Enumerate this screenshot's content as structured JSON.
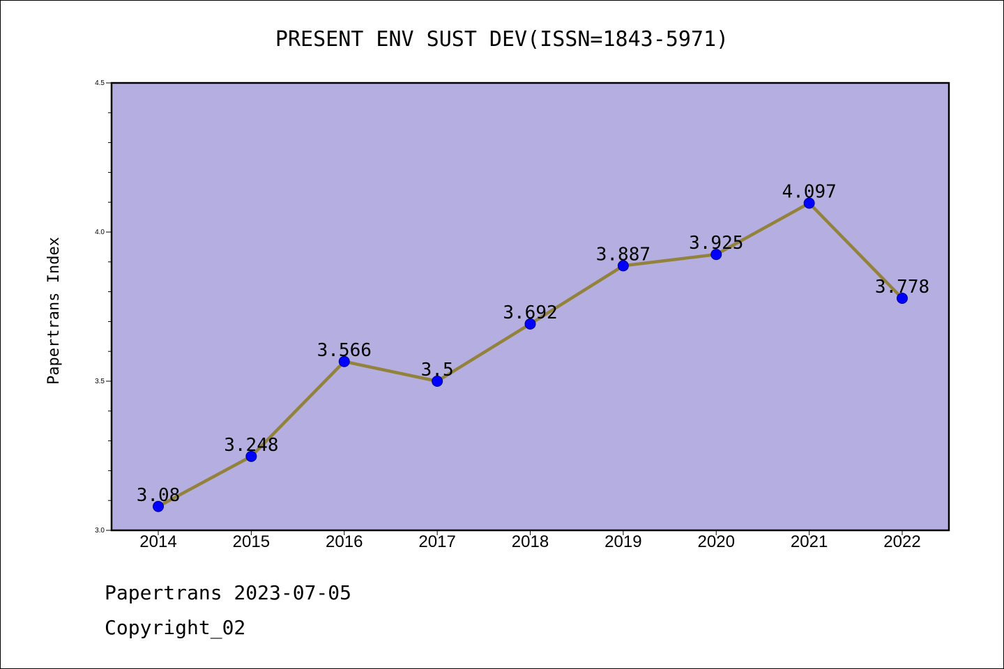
{
  "footer": {
    "date_line": "Papertrans 2023-07-05",
    "copyright": "Copyright_02"
  },
  "chart_data": {
    "type": "line",
    "title": "PRESENT ENV SUST DEV(ISSN=1843-5971)",
    "xlabel": "",
    "ylabel": "Papertrans Index",
    "categories": [
      "2014",
      "2015",
      "2016",
      "2017",
      "2018",
      "2019",
      "2020",
      "2021",
      "2022"
    ],
    "series": [
      {
        "values": [
          3.08,
          3.248,
          3.566,
          3.5,
          3.692,
          3.887,
          3.925,
          4.097,
          3.778
        ],
        "labels": [
          "3.08",
          "3.248",
          "3.566",
          "3.5",
          "3.692",
          "3.887",
          "3.925",
          "4.097",
          "3.778"
        ]
      }
    ],
    "ylim": [
      3.0,
      4.5
    ],
    "yticks": [
      "3.0",
      "3.5",
      "4.0",
      "4.5"
    ],
    "grid": false,
    "colors": {
      "plot_background": "#b5afe1",
      "line": "#93823c",
      "marker": "#0000ff"
    }
  }
}
